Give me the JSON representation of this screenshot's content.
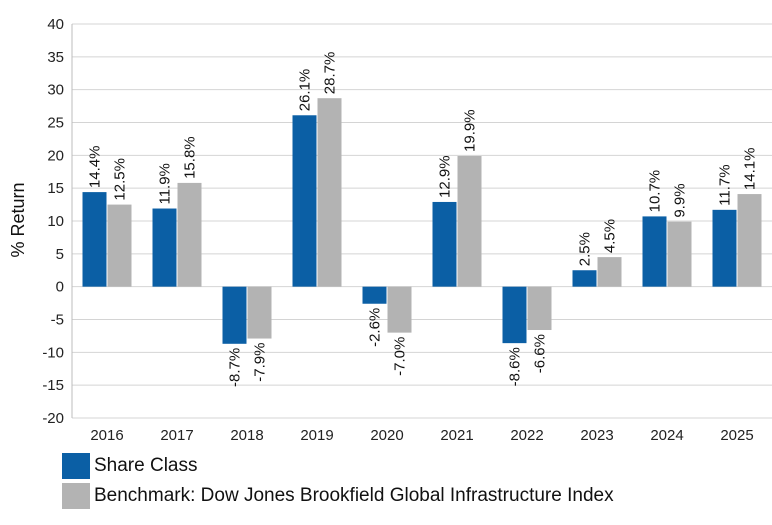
{
  "chart_data": {
    "type": "bar",
    "categories": [
      "2016",
      "2017",
      "2018",
      "2019",
      "2020",
      "2021",
      "2022",
      "2023",
      "2024",
      "2025"
    ],
    "series": [
      {
        "name": "Share Class",
        "color": "#0b5fa5",
        "values": [
          14.4,
          11.9,
          -8.7,
          26.1,
          -2.6,
          12.9,
          -8.6,
          2.5,
          10.7,
          11.7
        ],
        "labels": [
          "14.4%",
          "11.9%",
          "-8.7%",
          "26.1%",
          "-2.6%",
          "12.9%",
          "-8.6%",
          "2.5%",
          "10.7%",
          "11.7%"
        ]
      },
      {
        "name": "Benchmark: Dow Jones Brookfield Global Infrastructure Index",
        "color": "#b3b3b3",
        "values": [
          12.5,
          15.8,
          -7.9,
          28.7,
          -7.0,
          19.9,
          -6.6,
          4.5,
          9.9,
          14.1
        ],
        "labels": [
          "12.5%",
          "15.8%",
          "-7.9%",
          "28.7%",
          "-7.0%",
          "19.9%",
          "-6.6%",
          "4.5%",
          "9.9%",
          "14.1%"
        ]
      }
    ],
    "ylabel": "% Return",
    "ylim": [
      -20,
      40
    ],
    "yticks": [
      40,
      35,
      30,
      25,
      20,
      15,
      10,
      5,
      0,
      -5,
      -10,
      -15,
      -20
    ],
    "grid": true,
    "legend": "bottom-left"
  }
}
